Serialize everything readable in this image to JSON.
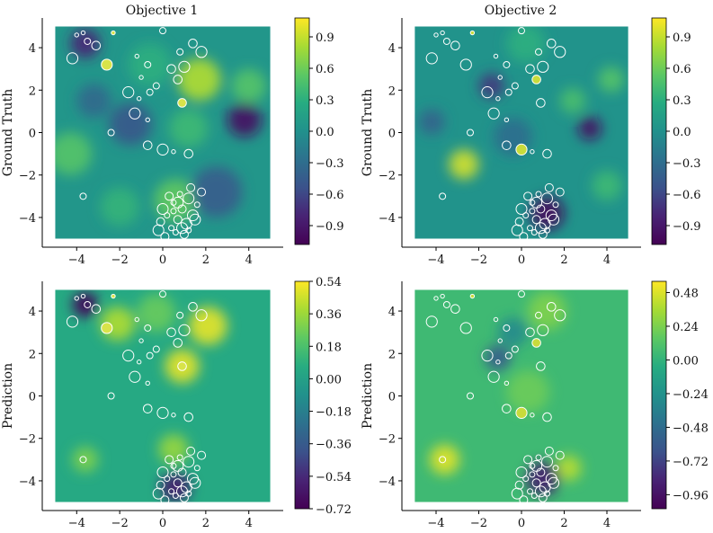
{
  "chart_data": [
    {
      "type": "heatmap",
      "title": "Objective 1",
      "ylabel": "Ground Truth",
      "xlabel": "",
      "xlim": [
        -5.6,
        5.6
      ],
      "ylim": [
        -5.4,
        5.4
      ],
      "xticks": [
        -4,
        -2,
        0,
        2,
        4
      ],
      "yticks": [
        -4,
        -2,
        0,
        2,
        4
      ],
      "colormap": "viridis",
      "colorbar_ticks": [
        -0.9,
        -0.6,
        -0.3,
        0.0,
        0.3,
        0.6,
        0.9
      ],
      "colorbar_range": [
        -1.08,
        1.08
      ],
      "colorbar_labels": [
        "−0.9",
        "−0.6",
        "−0.3",
        "0.0",
        "0.3",
        "0.6",
        "0.9"
      ]
    },
    {
      "type": "heatmap",
      "title": "Objective 2",
      "ylabel": "Ground Truth",
      "xlabel": "",
      "xlim": [
        -5.6,
        5.6
      ],
      "ylim": [
        -5.4,
        5.4
      ],
      "xticks": [
        -4,
        -2,
        0,
        2,
        4
      ],
      "yticks": [
        -4,
        -2,
        0,
        2,
        4
      ],
      "colormap": "viridis",
      "colorbar_ticks": [
        -0.9,
        -0.6,
        -0.3,
        0.0,
        0.3,
        0.6,
        0.9
      ],
      "colorbar_range": [
        -1.08,
        1.08
      ],
      "colorbar_labels": [
        "−0.9",
        "−0.6",
        "−0.3",
        "0.0",
        "0.3",
        "0.6",
        "0.9"
      ]
    },
    {
      "type": "heatmap",
      "title": "",
      "ylabel": "Prediction",
      "xlabel": "",
      "xlim": [
        -5.6,
        5.6
      ],
      "ylim": [
        -5.4,
        5.4
      ],
      "xticks": [
        -4,
        -2,
        0,
        2,
        4
      ],
      "yticks": [
        -4,
        -2,
        0,
        2,
        4
      ],
      "colormap": "viridis",
      "colorbar_ticks": [
        -0.72,
        -0.54,
        -0.36,
        -0.18,
        0.0,
        0.18,
        0.36,
        0.54
      ],
      "colorbar_range": [
        -0.72,
        0.54
      ],
      "colorbar_labels": [
        "−0.72",
        "−0.54",
        "−0.36",
        "−0.18",
        "0.00",
        "0.18",
        "0.36",
        "0.54"
      ]
    },
    {
      "type": "heatmap",
      "title": "",
      "ylabel": "Prediction",
      "xlabel": "",
      "xlim": [
        -5.6,
        5.6
      ],
      "ylim": [
        -5.4,
        5.4
      ],
      "xticks": [
        -4,
        -2,
        0,
        2,
        4
      ],
      "yticks": [
        -4,
        -2,
        0,
        2,
        4
      ],
      "colormap": "viridis",
      "colorbar_ticks": [
        -0.96,
        -0.72,
        -0.48,
        -0.24,
        0.0,
        0.24,
        0.48
      ],
      "colorbar_range": [
        -1.06,
        0.56
      ],
      "colorbar_labels": [
        "−0.96",
        "−0.72",
        "−0.48",
        "−0.24",
        "0.00",
        "0.24",
        "0.48"
      ]
    }
  ]
}
